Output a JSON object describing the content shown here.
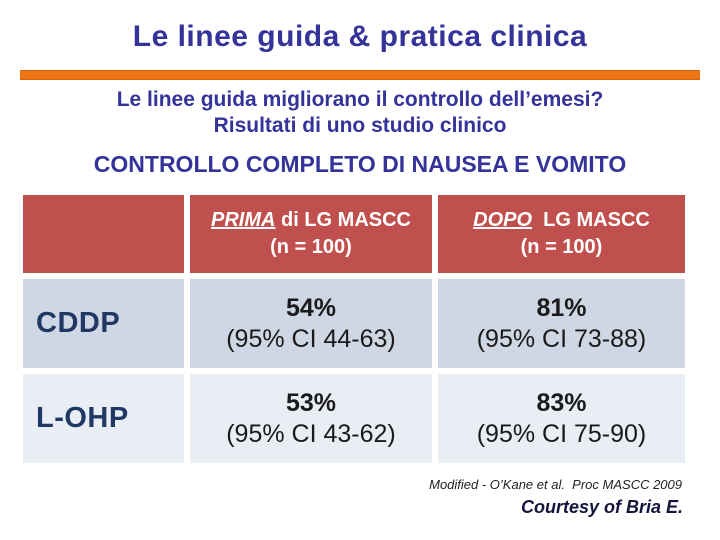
{
  "slide": {
    "title": "Le linee guida & pratica clinica",
    "subtitle_line1": "Le linee guida migliorano il controllo dell’emesi?",
    "subtitle_line2": "Risultati di uno studio clinico",
    "section_heading": "CONTROLLO COMPLETO DI NAUSEA E VOMITO"
  },
  "colors": {
    "title_navy": "#333399",
    "accent_orange": "#EC7412",
    "table_header_red": "#C0504D",
    "row_band_dark": "#CFD7E5",
    "row_band_light": "#E9EDF4",
    "row_label_navy": "#1F3864"
  },
  "table": {
    "headers": [
      {
        "emphasis": "PRIMA",
        "rest": " di LG MASCC",
        "n": "(n = 100)"
      },
      {
        "emphasis": "DOPO",
        "rest": "  LG MASCC",
        "n": "(n = 100)"
      }
    ],
    "rows": [
      {
        "label": "CDDP",
        "cells": [
          {
            "pct": "54%",
            "ci": "(95% CI 44-63)"
          },
          {
            "pct": "81%",
            "ci": "(95% CI 73-88)"
          }
        ]
      },
      {
        "label": "L-OHP",
        "cells": [
          {
            "pct": "53%",
            "ci": "(95% CI 43-62)"
          },
          {
            "pct": "83%",
            "ci": "(95% CI 75-90)"
          }
        ]
      }
    ]
  },
  "footer": {
    "citation": "Modified - O’Kane et al.  Proc MASCC 2009",
    "courtesy": "Courtesy of Bria E."
  }
}
